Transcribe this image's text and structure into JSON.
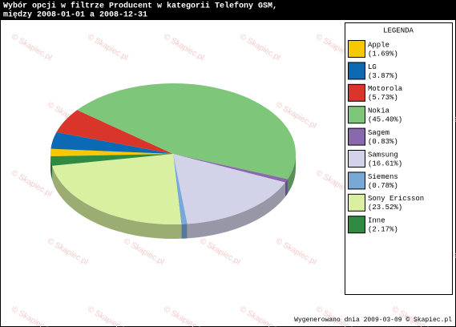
{
  "chart_data": {
    "type": "pie3d",
    "title": [
      "Wybór opcji w filtrze Producent w kategorii Telefony GSM,",
      "między 2008-01-01 a 2008-12-31"
    ],
    "legend_title": "LEGENDA",
    "categories": [
      "Apple",
      "LG",
      "Motorola",
      "Nokia",
      "Sagem",
      "Samsung",
      "Siemens",
      "Sony Ericsson",
      "Inne"
    ],
    "values": [
      1.69,
      3.87,
      5.73,
      45.4,
      0.83,
      16.61,
      0.78,
      23.52,
      2.17
    ],
    "value_labels": [
      "(1.69%)",
      "(3.87%)",
      "(5.73%)",
      "(45.40%)",
      "(0.83%)",
      "(16.61%)",
      "(0.78%)",
      "(23.52%)",
      "(2.17%)"
    ],
    "colors": [
      "#f7c800",
      "#0b6ab3",
      "#d9352a",
      "#7dc67a",
      "#8a68ae",
      "#d2d2e8",
      "#78a8d6",
      "#d9f0a0",
      "#2f8a42"
    ],
    "footer": "Wygenerowano dnia 2009-03-09 © Skapiec.pl",
    "watermark": "© Skapiec.pl"
  }
}
